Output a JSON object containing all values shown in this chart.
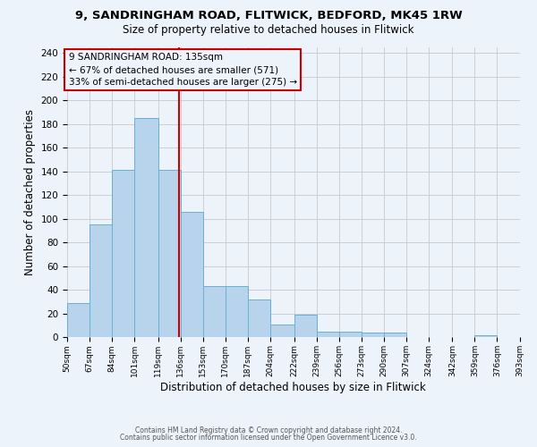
{
  "title1": "9, SANDRINGHAM ROAD, FLITWICK, BEDFORD, MK45 1RW",
  "title2": "Size of property relative to detached houses in Flitwick",
  "xlabel": "Distribution of detached houses by size in Flitwick",
  "ylabel": "Number of detached properties",
  "bin_edges": [
    50,
    67,
    84,
    101,
    119,
    136,
    153,
    170,
    187,
    204,
    222,
    239,
    256,
    273,
    290,
    307,
    324,
    342,
    359,
    376,
    393
  ],
  "bar_heights": [
    29,
    95,
    141,
    185,
    141,
    106,
    43,
    43,
    32,
    11,
    19,
    5,
    5,
    4,
    4,
    0,
    0,
    0,
    2,
    0
  ],
  "vline_x": 135,
  "bar_color": "#b8d4ec",
  "bar_edge_color": "#6aaed6",
  "background_color": "#edf3fa",
  "vline_color": "#cc0000",
  "annotation_line1": "9 SANDRINGHAM ROAD: 135sqm",
  "annotation_line2": "← 67% of detached houses are smaller (571)",
  "annotation_line3": "33% of semi-detached houses are larger (275) →",
  "ylim_max": 245,
  "yticks": [
    0,
    20,
    40,
    60,
    80,
    100,
    120,
    140,
    160,
    180,
    200,
    220,
    240
  ],
  "footer1": "Contains HM Land Registry data © Crown copyright and database right 2024.",
  "footer2": "Contains public sector information licensed under the Open Government Licence v3.0.",
  "grid_color": "#c8c8c8",
  "ann_box_edge_color": "#cc0000"
}
